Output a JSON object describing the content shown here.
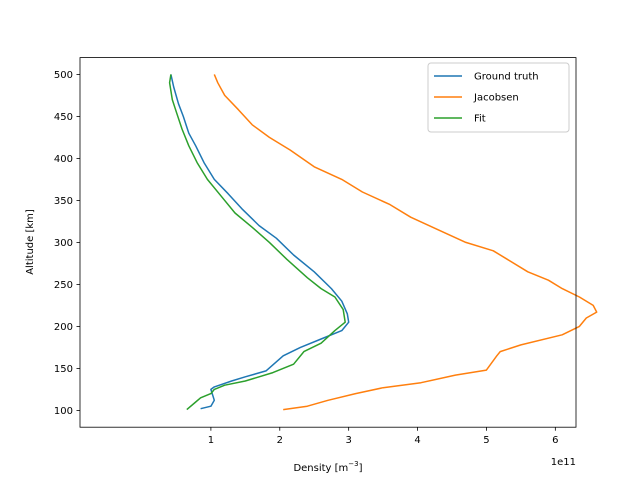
{
  "chart_data": {
    "type": "line",
    "xlabel": "Density [m",
    "xlabel_sup": "−3",
    "xlabel_end": "]",
    "ylabel": "Altitude [km]",
    "x_offset_text": "1e11",
    "x_multiplier": 100000000000.0,
    "xlim": [
      -0.9,
      6.3
    ],
    "ylim": [
      80,
      520
    ],
    "x_ticks": [
      1,
      2,
      3,
      4,
      5,
      6
    ],
    "y_ticks": [
      100,
      150,
      200,
      250,
      300,
      350,
      400,
      450,
      500
    ],
    "grid": false,
    "legend_position": "upper right",
    "series": [
      {
        "name": "Ground truth",
        "color": "#1f77b4",
        "x": [
          0.85,
          1.0,
          1.05,
          1.0,
          1.05,
          1.3,
          1.5,
          1.8,
          2.05,
          2.3,
          2.6,
          2.9,
          3.0,
          2.98,
          2.9,
          2.75,
          2.5,
          2.2,
          1.95,
          1.7,
          1.45,
          1.25,
          1.05,
          0.9,
          0.78,
          0.68,
          0.6,
          0.53,
          0.46,
          0.42
        ],
        "y": [
          102,
          105,
          112,
          125,
          128,
          135,
          140,
          147,
          165,
          175,
          185,
          195,
          205,
          215,
          230,
          245,
          265,
          285,
          305,
          320,
          340,
          358,
          375,
          395,
          415,
          430,
          450,
          465,
          485,
          500
        ]
      },
      {
        "name": "Jacobsen",
        "color": "#ff7f0e",
        "x": [
          2.05,
          2.4,
          2.7,
          3.1,
          3.5,
          4.05,
          4.55,
          5.0,
          5.15,
          5.2,
          5.5,
          6.1,
          6.35,
          6.45,
          6.6,
          6.55,
          6.35,
          6.1,
          5.9,
          5.6,
          5.3,
          5.1,
          4.7,
          4.3,
          3.9,
          3.6,
          3.2,
          2.9,
          2.5,
          2.15,
          1.85,
          1.6,
          1.4,
          1.2,
          1.1,
          1.05
        ],
        "y": [
          101,
          105,
          112,
          120,
          127,
          133,
          142,
          148,
          165,
          170,
          178,
          190,
          200,
          210,
          217,
          225,
          235,
          245,
          255,
          265,
          280,
          290,
          300,
          315,
          330,
          345,
          360,
          375,
          390,
          410,
          425,
          440,
          458,
          475,
          490,
          500
        ]
      },
      {
        "name": "Fit",
        "color": "#2ca02c",
        "x": [
          0.65,
          0.78,
          0.85,
          1.0,
          1.05,
          1.2,
          1.5,
          1.9,
          2.2,
          2.35,
          2.6,
          2.8,
          2.95,
          2.92,
          2.8,
          2.6,
          2.4,
          2.1,
          1.85,
          1.6,
          1.35,
          1.15,
          0.95,
          0.8,
          0.68,
          0.58,
          0.5,
          0.44,
          0.4,
          0.42
        ],
        "y": [
          101,
          110,
          115,
          120,
          125,
          130,
          135,
          145,
          155,
          170,
          180,
          195,
          205,
          220,
          235,
          245,
          258,
          280,
          300,
          318,
          335,
          355,
          375,
          395,
          415,
          435,
          455,
          470,
          490,
          500
        ]
      }
    ]
  }
}
